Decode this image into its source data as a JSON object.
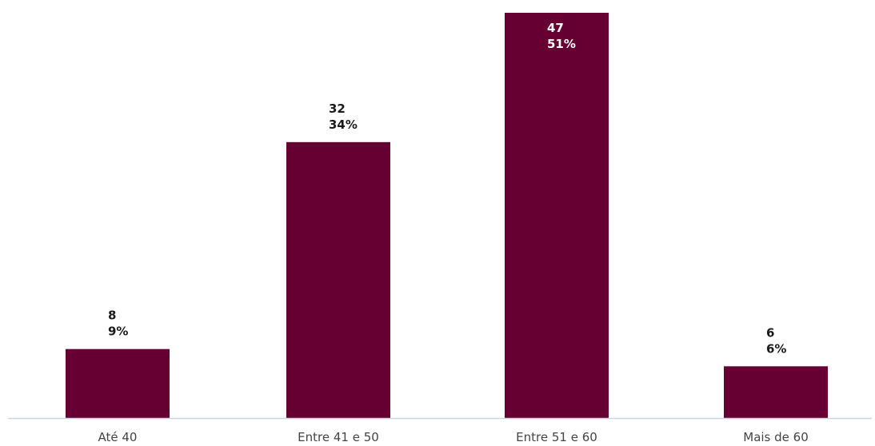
{
  "chart_data": {
    "type": "bar",
    "categories": [
      "Até 40",
      "Entre 41 e 50",
      "Entre 51 e 60",
      "Mais de 60"
    ],
    "values": [
      8,
      32,
      47,
      6
    ],
    "percent_labels": [
      "9%",
      "34%",
      "51%",
      "6%"
    ],
    "value_labels": [
      "8",
      "32",
      "47",
      "6"
    ],
    "title": "",
    "xlabel": "",
    "ylabel": "",
    "ylim": [
      0,
      47
    ],
    "grid": false,
    "legend": "none",
    "colors": {
      "bar": "#660033",
      "axis": "#c9d3e3",
      "label_outside": "#1a1a1a",
      "label_inside": "#ffffff",
      "tick": "#444444"
    }
  }
}
